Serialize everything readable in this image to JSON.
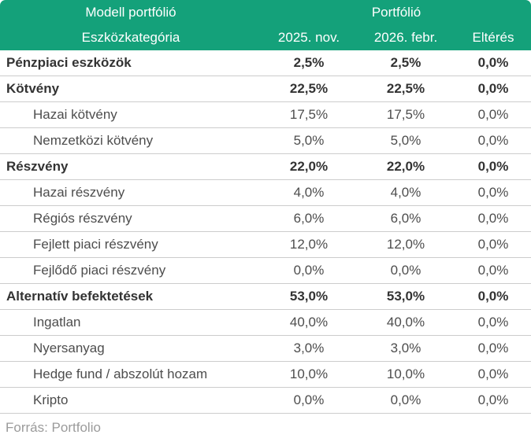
{
  "header": {
    "group_left": "Modell portfólió",
    "group_right": "Portfólió",
    "columns": [
      "Eszközkategória",
      "2025. nov.",
      "2026. febr.",
      "Eltérés"
    ]
  },
  "rows": [
    {
      "label": "Pénzpiaci eszközök",
      "nov": "2,5%",
      "feb": "2,5%",
      "diff": "0,0%"
    },
    {
      "label": "Kötvény",
      "nov": "22,5%",
      "feb": "22,5%",
      "diff": "0,0%"
    },
    {
      "label": "Hazai kötvény",
      "nov": "17,5%",
      "feb": "17,5%",
      "diff": "0,0%"
    },
    {
      "label": "Nemzetközi kötvény",
      "nov": "5,0%",
      "feb": "5,0%",
      "diff": "0,0%"
    },
    {
      "label": "Részvény",
      "nov": "22,0%",
      "feb": "22,0%",
      "diff": "0,0%"
    },
    {
      "label": "Hazai részvény",
      "nov": "4,0%",
      "feb": "4,0%",
      "diff": "0,0%"
    },
    {
      "label": "Régiós részvény",
      "nov": "6,0%",
      "feb": "6,0%",
      "diff": "0,0%"
    },
    {
      "label": "Fejlett piaci részvény",
      "nov": "12,0%",
      "feb": "12,0%",
      "diff": "0,0%"
    },
    {
      "label": "Fejlődő piaci részvény",
      "nov": "0,0%",
      "feb": "0,0%",
      "diff": "0,0%"
    },
    {
      "label": "Alternatív befektetések",
      "nov": "53,0%",
      "feb": "53,0%",
      "diff": "0,0%"
    },
    {
      "label": "Ingatlan",
      "nov": "40,0%",
      "feb": "40,0%",
      "diff": "0,0%"
    },
    {
      "label": "Nyersanyag",
      "nov": "3,0%",
      "feb": "3,0%",
      "diff": "0,0%"
    },
    {
      "label": "Hedge fund / abszolút hozam",
      "nov": "10,0%",
      "feb": "10,0%",
      "diff": "0,0%"
    },
    {
      "label": "Kripto",
      "nov": "0,0%",
      "feb": "0,0%",
      "diff": "0,0%"
    }
  ],
  "footer": {
    "source": "Forrás: Portfolio"
  },
  "colors": {
    "header_bg": "#14a17a",
    "header_text": "#ffffff",
    "row_border": "#cccccc",
    "text_strong": "#333333",
    "text_regular": "#4d4d4d",
    "source_text": "#9b9b9b"
  },
  "chart_data": {
    "type": "table",
    "title": "Modell portfólió / Portfólió",
    "columns": [
      "Eszközkategória",
      "2025. nov.",
      "2026. febr.",
      "Eltérés"
    ],
    "rows": [
      {
        "category": "Pénzpiaci eszközök",
        "level": "group",
        "nov_2025_pct": 2.5,
        "febr_2026_pct": 2.5,
        "elteres_pct": 0.0
      },
      {
        "category": "Kötvény",
        "level": "group",
        "nov_2025_pct": 22.5,
        "febr_2026_pct": 22.5,
        "elteres_pct": 0.0
      },
      {
        "category": "Hazai kötvény",
        "level": "sub",
        "nov_2025_pct": 17.5,
        "febr_2026_pct": 17.5,
        "elteres_pct": 0.0
      },
      {
        "category": "Nemzetközi kötvény",
        "level": "sub",
        "nov_2025_pct": 5.0,
        "febr_2026_pct": 5.0,
        "elteres_pct": 0.0
      },
      {
        "category": "Részvény",
        "level": "group",
        "nov_2025_pct": 22.0,
        "febr_2026_pct": 22.0,
        "elteres_pct": 0.0
      },
      {
        "category": "Hazai részvény",
        "level": "sub",
        "nov_2025_pct": 4.0,
        "febr_2026_pct": 4.0,
        "elteres_pct": 0.0
      },
      {
        "category": "Régiós részvény",
        "level": "sub",
        "nov_2025_pct": 6.0,
        "febr_2026_pct": 6.0,
        "elteres_pct": 0.0
      },
      {
        "category": "Fejlett piaci részvény",
        "level": "sub",
        "nov_2025_pct": 12.0,
        "febr_2026_pct": 12.0,
        "elteres_pct": 0.0
      },
      {
        "category": "Fejlődő piaci részvény",
        "level": "sub",
        "nov_2025_pct": 0.0,
        "febr_2026_pct": 0.0,
        "elteres_pct": 0.0
      },
      {
        "category": "Alternatív befektetések",
        "level": "group",
        "nov_2025_pct": 53.0,
        "febr_2026_pct": 53.0,
        "elteres_pct": 0.0
      },
      {
        "category": "Ingatlan",
        "level": "sub",
        "nov_2025_pct": 40.0,
        "febr_2026_pct": 40.0,
        "elteres_pct": 0.0
      },
      {
        "category": "Nyersanyag",
        "level": "sub",
        "nov_2025_pct": 3.0,
        "febr_2026_pct": 3.0,
        "elteres_pct": 0.0
      },
      {
        "category": "Hedge fund / abszolút hozam",
        "level": "sub",
        "nov_2025_pct": 10.0,
        "febr_2026_pct": 10.0,
        "elteres_pct": 0.0
      },
      {
        "category": "Kripto",
        "level": "sub",
        "nov_2025_pct": 0.0,
        "febr_2026_pct": 0.0,
        "elteres_pct": 0.0
      }
    ],
    "source": "Forrás: Portfolio"
  }
}
